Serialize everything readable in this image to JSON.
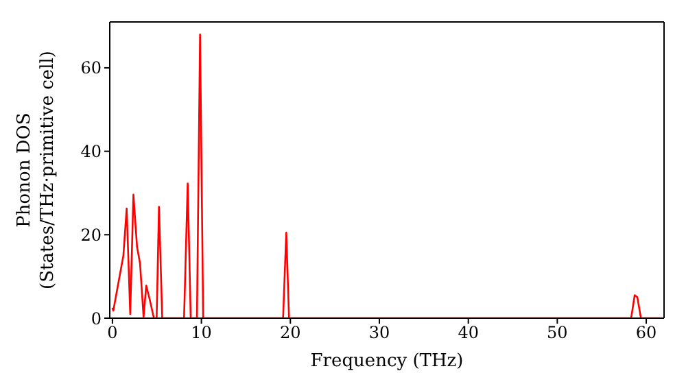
{
  "chart_data": {
    "type": "line",
    "xlabel": "Frequency (THz)",
    "ylabel": "Phonon DOS\n(States/THz·primitive cell)",
    "x": [
      0,
      0.1,
      1.23,
      1.6,
      2.0,
      2.36,
      2.77,
      3.1,
      3.5,
      3.8,
      4.2,
      4.66,
      4.97,
      5.23,
      5.6,
      8.05,
      8.46,
      8.8,
      9.5,
      9.85,
      10.2,
      19.18,
      19.54,
      19.85,
      58.3,
      58.7,
      59.0,
      59.4,
      61.5
    ],
    "series": [
      {
        "color": "#ff0000",
        "values": [
          2.5,
          1.8,
          15,
          26.3,
          1,
          29.6,
          17,
          13.2,
          0.3,
          7.8,
          4.4,
          0,
          0,
          26.7,
          0,
          0,
          32.3,
          0,
          0,
          68,
          0,
          0,
          20.5,
          0,
          0,
          5.5,
          5,
          0,
          0
        ]
      }
    ],
    "xlim": [
      -0.3,
      62
    ],
    "xticks": [
      0,
      10,
      20,
      30,
      40,
      50,
      60
    ],
    "ylim": [
      0,
      71
    ],
    "yticks": [
      0,
      20,
      40,
      60
    ],
    "grid": false,
    "legend": false,
    "marker": "none",
    "line_style": "solid"
  }
}
